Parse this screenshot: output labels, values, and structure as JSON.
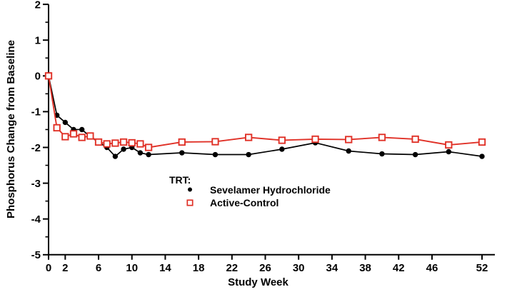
{
  "figure": {
    "background": "#ffffff",
    "axis_color": "#000000"
  },
  "chart_data": {
    "type": "line",
    "title": "",
    "xlabel": "Study Week",
    "ylabel": "Phosphorus Change from Baseline",
    "xlim": [
      0,
      54
    ],
    "ylim": [
      -5,
      2
    ],
    "x_ticks": [
      0,
      2,
      6,
      10,
      14,
      18,
      22,
      26,
      30,
      34,
      38,
      42,
      46,
      52
    ],
    "y_ticks": [
      2,
      1,
      0,
      -1,
      -2,
      -3,
      -4,
      -5
    ],
    "y_minor_step": 0.5,
    "grid": false,
    "legend": {
      "title": "TRT:",
      "position": "inside-bottom-left"
    },
    "x": [
      0,
      1,
      2,
      3,
      4,
      5,
      6,
      7,
      8,
      9,
      10,
      11,
      12,
      16,
      20,
      24,
      28,
      32,
      36,
      40,
      44,
      48,
      52
    ],
    "series": [
      {
        "name": "Sevelamer Hydrochloride",
        "marker": "filled-circle",
        "color": "#000000",
        "values": [
          0,
          -1.1,
          -1.3,
          -1.5,
          -1.5,
          -1.7,
          -1.85,
          -2.0,
          -2.25,
          -2.05,
          -2.0,
          -2.15,
          -2.2,
          -2.15,
          -2.2,
          -2.2,
          -2.05,
          -1.87,
          -2.1,
          -2.18,
          -2.2,
          -2.12,
          -2.25
        ]
      },
      {
        "name": "Active-Control",
        "marker": "open-square",
        "color": "#e03127",
        "values": [
          0,
          -1.45,
          -1.7,
          -1.62,
          -1.72,
          -1.68,
          -1.85,
          -1.9,
          -1.88,
          -1.85,
          -1.87,
          -1.9,
          -2.0,
          -1.85,
          -1.84,
          -1.72,
          -1.8,
          -1.77,
          -1.78,
          -1.72,
          -1.77,
          -1.93,
          -1.85
        ]
      }
    ]
  }
}
